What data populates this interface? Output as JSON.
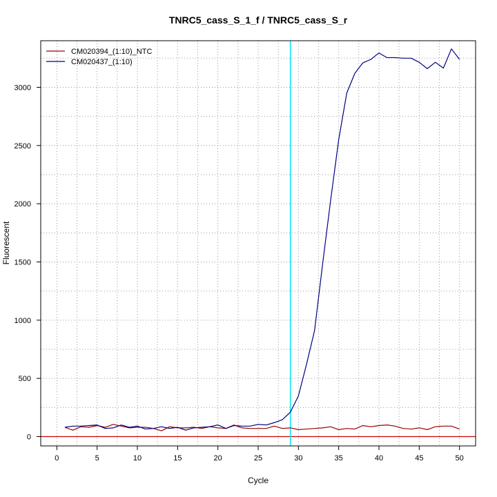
{
  "chart_data": {
    "type": "line",
    "title": "TNRC5_cass_S_1_f / TNRC5_cass_S_r",
    "xlabel": "Cycle",
    "ylabel": "Fluorescent",
    "xlim": [
      -2,
      52
    ],
    "ylim": [
      -80,
      3400
    ],
    "x_ticks": [
      0,
      5,
      10,
      15,
      20,
      25,
      30,
      35,
      40,
      45,
      50
    ],
    "y_ticks": [
      0,
      500,
      1000,
      1500,
      2000,
      2500,
      3000
    ],
    "grid": true,
    "legend_position": "top-left",
    "threshold_line": {
      "x": 29,
      "color": "#00e5ee"
    },
    "baseline": {
      "y": 0,
      "color": "#cc0000"
    },
    "series": [
      {
        "name": "CM020394_(1:10)_NTC",
        "color": "#990000",
        "x": [
          1,
          2,
          3,
          4,
          5,
          6,
          7,
          8,
          9,
          10,
          11,
          12,
          13,
          14,
          15,
          16,
          17,
          18,
          19,
          20,
          21,
          22,
          23,
          24,
          25,
          26,
          27,
          28,
          29,
          30,
          31,
          32,
          33,
          34,
          35,
          36,
          37,
          38,
          39,
          40,
          41,
          42,
          43,
          44,
          45,
          46,
          47,
          48,
          49,
          50
        ],
        "y": [
          80,
          55,
          85,
          80,
          95,
          80,
          105,
          90,
          75,
          80,
          80,
          70,
          50,
          85,
          75,
          75,
          80,
          70,
          85,
          75,
          70,
          100,
          75,
          70,
          70,
          70,
          90,
          70,
          75,
          60,
          65,
          70,
          75,
          85,
          60,
          70,
          65,
          95,
          85,
          95,
          100,
          90,
          70,
          65,
          75,
          60,
          85,
          90,
          90,
          65
        ]
      },
      {
        "name": "CM020437_(1:10)",
        "color": "#000080",
        "x": [
          1,
          2,
          3,
          4,
          5,
          6,
          7,
          8,
          9,
          10,
          11,
          12,
          13,
          14,
          15,
          16,
          17,
          18,
          19,
          20,
          21,
          22,
          23,
          24,
          25,
          26,
          27,
          28,
          29,
          30,
          31,
          32,
          33,
          34,
          35,
          36,
          37,
          38,
          39,
          40,
          41,
          42,
          43,
          44,
          45,
          46,
          47,
          48,
          49,
          50
        ],
        "y": [
          80,
          90,
          90,
          95,
          100,
          70,
          75,
          100,
          80,
          90,
          65,
          70,
          85,
          70,
          80,
          55,
          75,
          80,
          85,
          100,
          70,
          95,
          90,
          90,
          105,
          100,
          120,
          145,
          210,
          350,
          620,
          910,
          1480,
          2030,
          2550,
          2950,
          3120,
          3210,
          3240,
          3295,
          3255,
          3255,
          3250,
          3250,
          3215,
          3160,
          3215,
          3165,
          3330,
          3240
        ]
      }
    ]
  }
}
